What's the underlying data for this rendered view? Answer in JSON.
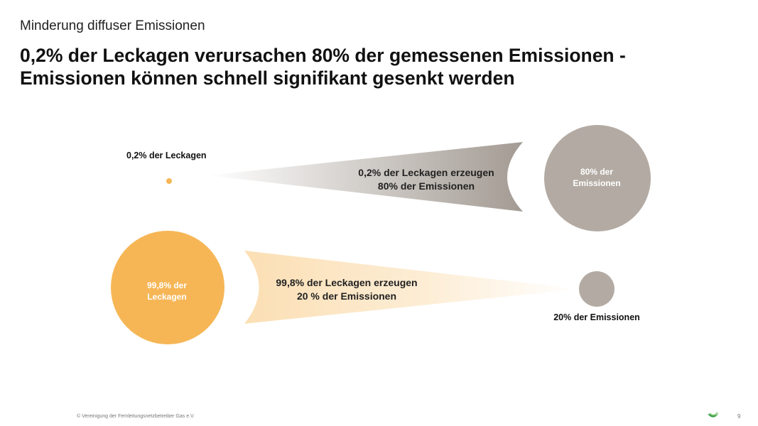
{
  "header": {
    "subtitle": "Minderung diffuser Emissionen",
    "title_line1": "0,2% der Leckagen verursachen 80% der gemessenen Emissionen -",
    "title_line2": "Emissionen können schnell signifikant gesenkt werden"
  },
  "diagram": {
    "top_row": {
      "leakage_label": "0,2% der Leckagen",
      "flow_line1": "0,2% der Leckagen erzeugen",
      "flow_line2": "80% der Emissionen",
      "emission_circle_line1": "80% der",
      "emission_circle_line2": "Emissionen"
    },
    "bottom_row": {
      "leakage_circle_line1": "99,8% der",
      "leakage_circle_line2": "Leckagen",
      "flow_line1": "99,8% der Leckagen erzeugen",
      "flow_line2": "20 % der Emissionen",
      "emission_label": "20% der Emissionen"
    },
    "colors": {
      "orange": "#f6b656",
      "grey": "#b3aba3",
      "orange_light": "#fbdfb4",
      "grey_dark": "#a39b93"
    }
  },
  "footer": {
    "copyright": "© Vereinigung der Fernleitungsnetzbetreiber Gas e.V.",
    "page_number": "9",
    "logo_icon": "fnb-gas-logo-icon"
  }
}
